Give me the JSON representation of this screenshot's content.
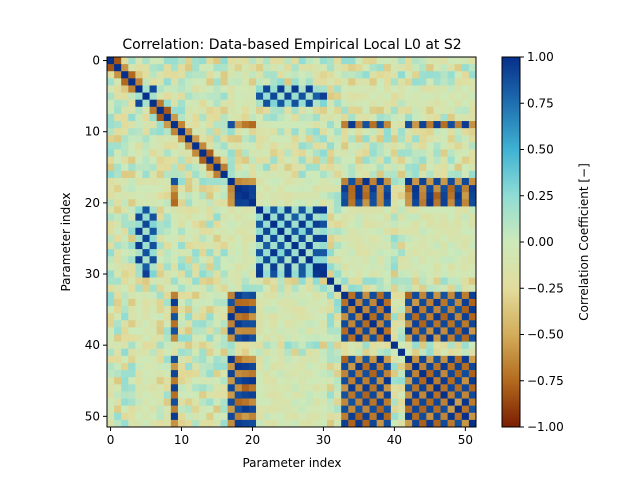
{
  "chart_data": {
    "type": "heatmap",
    "title": "Correlation: Data-based Empirical Local L0 at S2",
    "xlabel": "Parameter index",
    "ylabel": "Parameter index",
    "n": 52,
    "x_ticks": [
      0,
      10,
      20,
      30,
      40,
      50
    ],
    "y_ticks": [
      0,
      10,
      20,
      30,
      40,
      50
    ],
    "colorbar": {
      "label": "Correlation Coefficient [−]",
      "range": [
        -1.0,
        1.0
      ],
      "ticks": [
        -1.0,
        -0.75,
        -0.5,
        -0.25,
        0.0,
        0.25,
        0.5,
        0.75,
        1.0
      ],
      "tick_labels": [
        "−1.00",
        "−0.75",
        "−0.50",
        "−0.25",
        "0.00",
        "0.25",
        "0.50",
        "0.75",
        "1.00"
      ],
      "colors": [
        "#7a1e02",
        "#b36a1e",
        "#d3ad5a",
        "#e2dc9c",
        "#cde9ba",
        "#8fdcd4",
        "#3fb2d3",
        "#1f6fb0",
        "#062f8a"
      ]
    },
    "structure": {
      "group_a": [
        4,
        6,
        22,
        24,
        26,
        28
      ],
      "group_b": [
        5,
        21,
        23,
        25,
        27,
        29,
        30
      ],
      "group_c": [
        18,
        19,
        20,
        33,
        35,
        37,
        39,
        43,
        45,
        47,
        49,
        51
      ],
      "group_d": [
        9,
        17,
        34,
        36,
        38,
        42,
        44,
        46,
        48,
        50
      ],
      "group_e": [
        0,
        1,
        2,
        3,
        7,
        8,
        10,
        11,
        12,
        13,
        14,
        15,
        16,
        31,
        32,
        40,
        41
      ]
    }
  }
}
